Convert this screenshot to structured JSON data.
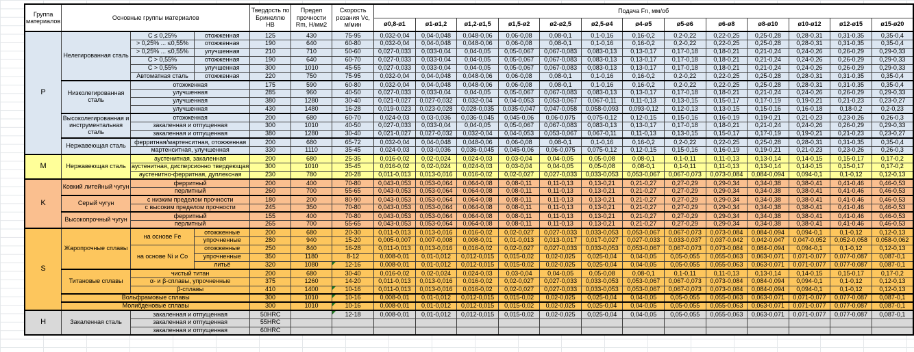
{
  "header": {
    "col_group": "Группа материалов",
    "col_main": "Основные группы материалов",
    "col_hardness": "Твердость по Бринеллю HB",
    "col_strength": "Предел прочности Rm, Н/мм2",
    "col_speed": "Скорость резания Vc, м/мин",
    "feed_title": "Подача Fn, мм/об",
    "feed_cols": [
      "ø0,8-ø1",
      "ø1-ø1,2",
      "ø1,2-ø1,5",
      "ø1,5-ø2",
      "ø2-ø2,5",
      "ø2,5-ø4",
      "ø4-ø5",
      "ø5-ø6",
      "ø6-ø8",
      "ø8-ø10",
      "ø10-ø12",
      "ø12-ø15",
      "ø15-ø20"
    ]
  },
  "group_colors": {
    "P": "#DCE6F1",
    "M": "#FFFF99",
    "K": "#FABF8F",
    "S": "#FDC65D",
    "H": "#D9D9D9"
  },
  "comment_indicator_color": "#217821",
  "feed_patterns": {
    "A": [
      "0,032-0,04",
      "0,04-0,048",
      "0,048-0,06",
      "0,06-0,08",
      "0,08-0,1",
      "0,1-0,16",
      "0,16-0,2",
      "0,2-0,22",
      "0,22-0,25",
      "0,25-0,28",
      "0,28-0,31",
      "0,31-0,35",
      "0,35-0,4"
    ],
    "B": [
      "0,027-0,033",
      "0,033-0,04",
      "0,04-0,05",
      "0,05-0,067",
      "0,067-0,083",
      "0,083-0,13",
      "0,13-0,17",
      "0,17-0,18",
      "0,18-0,21",
      "0,21-0,24",
      "0,24-0,26",
      "0,26-0,29",
      "0,29-0,33"
    ],
    "C": [
      "0,021-0,027",
      "0,027-0,032",
      "0,032-0,04",
      "0,04-0,053",
      "0,053-0,067",
      "0,067-0,11",
      "0,11-0,13",
      "0,13-0,15",
      "0,15-0,17",
      "0,17-0,19",
      "0,19-0,21",
      "0,21-0,23",
      "0,23-0,27"
    ],
    "D": [
      "0,019-0,023",
      "0,023-0,028",
      "0,028-0,035",
      "0,035-0,047",
      "0,047-0,058",
      "0,058-0,093",
      "0,093-0,12",
      "0,12-0,13",
      "0,13-0,15",
      "0,15-0,16",
      "0,16-0,18",
      "0,18-0,2",
      "0,2-0,23"
    ],
    "E": [
      "0,024-0,03",
      "0,03-0,036",
      "0,036-0,045",
      "0,045-0,06",
      "0,06-0,075",
      "0,075-0,12",
      "0,12-0,15",
      "0,15-0,16",
      "0,16-0,19",
      "0,19-0,21",
      "0,21-0,23",
      "0,23-0,26",
      "0,26-0,3"
    ],
    "F": [
      "0,016-0,02",
      "0,02-0,024",
      "0,024-0,03",
      "0,03-0,04",
      "0,04-0,05",
      "0,05-0,08",
      "0,08-0,1",
      "0,1-0,11",
      "0,11-0,13",
      "0,13-0,14",
      "0,14-0,15",
      "0,15-0,17",
      "0,17-0,2"
    ],
    "G": [
      "0,011-0,013",
      "0,013-0,016",
      "0,016-0,02",
      "0,02-0,027",
      "0,027-0,033",
      "0,033-0,053",
      "0,053-0,067",
      "0,067-0,073",
      "0,073-0,084",
      "0,084-0,094",
      "0,094-0,1",
      "0,1-0,12",
      "0,12-0,13"
    ],
    "H": [
      "0,043-0,053",
      "0,053-0,064",
      "0,064-0,08",
      "0,08-0,11",
      "0,11-0,13",
      "0,13-0,21",
      "0,21-0,27",
      "0,27-0,29",
      "0,29-0,34",
      "0,34-0,38",
      "0,38-0,41",
      "0,41-0,46",
      "0,46-0,53"
    ],
    "I": [
      "0,005-0,007",
      "0,007-0,008",
      "0,008-0,01",
      "0,01-0,013",
      "0,013-0,017",
      "0,017-0,027",
      "0,027-0,033",
      "0,033-0,037",
      "0,037-0,042",
      "0,042-0,047",
      "0,047-0,052",
      "0,052-0,058",
      "0,058-0,062"
    ],
    "J": [
      "0,008-0,01",
      "0,01-0,012",
      "0,012-0,015",
      "0,015-0,02",
      "0,02-0,025",
      "0,025-0,04",
      "0,04-0,05",
      "0,05-0,055",
      "0,055-0,063",
      "0,063-0,071",
      "0,071-0,077",
      "0,077-0,087",
      "0,087-0,1"
    ]
  },
  "rows": [
    {
      "group": {
        "label": "P",
        "span": 15
      },
      "sec": true,
      "name": {
        "text": "Нелегированная сталь",
        "span": 6
      },
      "sub": {
        "text": "C ≤ 0,25%",
        "span": 1
      },
      "state": "отожженная",
      "hb": "125",
      "rm": "430",
      "vc": "75-95",
      "feed": "A"
    },
    {
      "sub": {
        "text": "> 0,25% ... ≤0,55%",
        "span": 1
      },
      "state": "отожженная",
      "hb": "190",
      "rm": "640",
      "vc": "60-80",
      "feed": "A"
    },
    {
      "sub": {
        "text": "> 0,25% ... ≤0,55%",
        "span": 1
      },
      "state": "улучшенная",
      "hb": "210",
      "rm": "710",
      "vc": "50-60",
      "feed": "B"
    },
    {
      "sub": {
        "text": "C > 0,55%",
        "span": 1
      },
      "state": "отожженная",
      "hb": "190",
      "rm": "640",
      "vc": "60-70",
      "feed": "B"
    },
    {
      "sub": {
        "text": "C > 0,55%",
        "span": 1
      },
      "state": "улучшенная",
      "hb": "300",
      "rm": "1010",
      "vc": "45-55",
      "feed": "B"
    },
    {
      "sub": {
        "text": "Автоматная сталь",
        "span": 1
      },
      "state": "отожженная",
      "hb": "220",
      "rm": "750",
      "vc": "75-95",
      "feed": "A"
    },
    {
      "sec": true,
      "name": {
        "text": "Низколегированная сталь",
        "span": 4
      },
      "state2": "отожженная",
      "hb": "175",
      "rm": "590",
      "vc": "60-80",
      "feed": "A"
    },
    {
      "state2": "улучшенная",
      "hb": "285",
      "rm": "960",
      "vc": "40-50",
      "feed": "B"
    },
    {
      "state2": "улучшенная",
      "hb": "380",
      "rm": "1280",
      "vc": "30-40",
      "feed": "C"
    },
    {
      "state2": "улучшенная",
      "hb": "430",
      "rm": "1480",
      "vc": "16-28",
      "feed": "D"
    },
    {
      "sec": true,
      "name": {
        "text": "Высоколегированная и инструментальная сталь",
        "span": 3
      },
      "state2": "отожженная",
      "hb": "200",
      "rm": "680",
      "vc": "60-70",
      "feed": "E"
    },
    {
      "state2": "закаленная и отпущенная",
      "hb": "300",
      "rm": "1010",
      "vc": "40-50",
      "feed": "B"
    },
    {
      "state2": "закаленная и отпущенная",
      "hb": "380",
      "rm": "1280",
      "vc": "30-40",
      "feed": "C"
    },
    {
      "sec": true,
      "name": {
        "text": "Нержавеющая сталь",
        "span": 2
      },
      "state2": "ферритная/мартенситная, отожженная",
      "hb": "200",
      "rm": "680",
      "vc": "65-72",
      "feed": "A"
    },
    {
      "state2": "мартенситная, улучшенная",
      "hb": "330",
      "rm": "1110",
      "vc": "35-45",
      "feed": "E"
    },
    {
      "group": {
        "label": "M",
        "span": 3
      },
      "sec": true,
      "name": {
        "text": "Нержавеющая сталь",
        "span": 3
      },
      "state2": "аустенитная, закаленная",
      "hb": "200",
      "rm": "680",
      "vc": "25-35",
      "feed": "F"
    },
    {
      "state2": "аустенитная, дисперсионно твердеющая",
      "hb": "300",
      "rm": "1010",
      "vc": "35-45",
      "feed": "F"
    },
    {
      "state2": "аустенитно-ферритная, дуплексная",
      "hb": "230",
      "rm": "780",
      "vc": "20-28",
      "feed": "G"
    },
    {
      "group": {
        "label": "K",
        "span": 6
      },
      "sec": true,
      "name": {
        "text": "Ковкий литейный чугун",
        "span": 2
      },
      "state2": "ферритный",
      "hb": "200",
      "rm": "400",
      "vc": "70-80",
      "feed": "H"
    },
    {
      "state2": "перлитный",
      "hb": "260",
      "rm": "700",
      "vc": "55-65",
      "feed": "H"
    },
    {
      "sec": true,
      "name": {
        "text": "Серый чугун",
        "span": 2
      },
      "state2": "с низким пределом прочности",
      "hb": "180",
      "rm": "200",
      "vc": "80-90",
      "feed": "H"
    },
    {
      "state2": "с высоким пределом прочности",
      "hb": "245",
      "rm": "350",
      "vc": "70-80",
      "feed": "H"
    },
    {
      "sec": true,
      "name": {
        "text": "Высокопрочный чугун",
        "span": 2
      },
      "state2": "ферритный",
      "hb": "155",
      "rm": "400",
      "vc": "70-80",
      "feed": "H"
    },
    {
      "state2": "перлитный",
      "hb": "265",
      "rm": "700",
      "vc": "55-65",
      "feed": "H"
    },
    {
      "group": {
        "label": "S",
        "span": 10
      },
      "sec": true,
      "name": {
        "text": "Жаропрочные сплавы",
        "span": 5
      },
      "sub": {
        "text": "на основе Fe",
        "span": 2
      },
      "state": "отожженные",
      "hb": "200",
      "rm": "680",
      "vc": "20-30",
      "feed": "G"
    },
    {
      "state": "упрочненные",
      "hb": "280",
      "rm": "940",
      "vc": "15-20",
      "feed": "I"
    },
    {
      "sub": {
        "text": "на основе Ni и Co",
        "span": 3
      },
      "state": "отожженные",
      "hb": "250",
      "rm": "840",
      "vc": "16-28",
      "feed": "G"
    },
    {
      "state": "упрочненные",
      "hb": "350",
      "rm": "1180",
      "vc": "8-12",
      "feed": "J"
    },
    {
      "state": "литьё",
      "hb": "320",
      "rm": "1080",
      "vc": "12-16",
      "vc_note": true,
      "feed": "J"
    },
    {
      "sec": true,
      "name": {
        "text": "Титановые сплавы",
        "span": 3
      },
      "state2": "чистый титан",
      "hb": "200",
      "rm": "680",
      "vc": "30-40",
      "feed": "F"
    },
    {
      "state2": "α- и β-сплавы, упрочненные",
      "hb": "375",
      "rm": "1260",
      "vc": "14-20",
      "feed": "G"
    },
    {
      "state2": "β-сплавы",
      "hb": "410",
      "rm": "1400",
      "vc": "10-16",
      "vc_note": true,
      "feed": "G"
    },
    {
      "sec": true,
      "merge3": "Вольфрамовые сплавы",
      "hb": "300",
      "rm": "1010",
      "vc": "10-16",
      "vc_note": true,
      "feed": "J"
    },
    {
      "sec": true,
      "merge3": "Молибденовые сплавы",
      "hb": "300",
      "rm": "1010",
      "vc": "10-16",
      "vc_note": true,
      "feed": "J"
    },
    {
      "group": {
        "label": "H",
        "span": 3
      },
      "sec": true,
      "name": {
        "text": "Закаленная сталь",
        "span": 3
      },
      "state2": "закаленная и отпущенная",
      "hb": "50HRC",
      "rm": "",
      "vc": "12-18",
      "vc_note": true,
      "feed": "J"
    },
    {
      "state2": "закаленная и отпущенная",
      "hb": "55HRC",
      "rm": "",
      "vc": "",
      "feed": null
    },
    {
      "state2": "закаленная и отпущенная",
      "hb": "60HRC",
      "rm": "",
      "vc": "",
      "feed": null
    }
  ]
}
